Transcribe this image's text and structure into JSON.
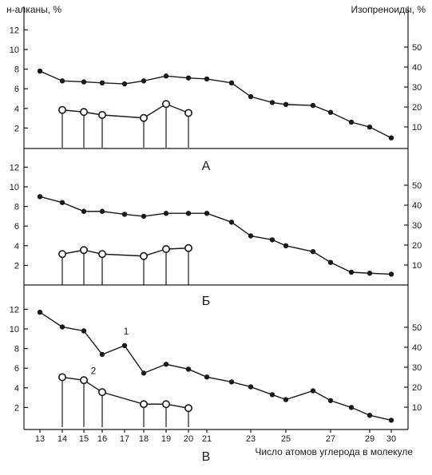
{
  "labels": {
    "left_axis": "н-алканы, %",
    "right_axis": "Изопреноиды, %",
    "x_axis": "Число атомов углерода в молекуле"
  },
  "chart_data": [
    {
      "type": "line",
      "panel": "А",
      "x": [
        13,
        14,
        15,
        16,
        17,
        18,
        19,
        20,
        21,
        22,
        23,
        24,
        25,
        26,
        27,
        28,
        29,
        30
      ],
      "x_tick_labels": [
        "13",
        "14",
        "15",
        "16",
        "17",
        "18",
        "19",
        "20",
        "21",
        "23",
        "25",
        "27",
        "29",
        "30"
      ],
      "ylim": [
        0,
        13
      ],
      "y_ticks": [
        2,
        4,
        6,
        8,
        10,
        12
      ],
      "y2lim": [
        0,
        65
      ],
      "y2_ticks": [
        10,
        20,
        30,
        40,
        50
      ],
      "series": [
        {
          "name": "",
          "marker": "filled-circle",
          "x": [
            13,
            14,
            15,
            16,
            17,
            18,
            19,
            20,
            21,
            22,
            23,
            24,
            25,
            26,
            27,
            28,
            29,
            30
          ],
          "values": [
            7.8,
            6.8,
            6.7,
            6.6,
            6.5,
            6.8,
            7.3,
            7.1,
            7.0,
            6.6,
            5.2,
            4.6,
            4.4,
            4.3,
            3.6,
            2.6,
            2.1,
            1.0
          ]
        },
        {
          "name": "",
          "marker": "open-circle-stem",
          "x": [
            14,
            15,
            16,
            18,
            19,
            20
          ],
          "values": [
            18.5,
            17.5,
            16.0,
            14.5,
            21.5,
            17.0
          ]
        }
      ]
    },
    {
      "type": "line",
      "panel": "Б",
      "x": [
        13,
        14,
        15,
        16,
        17,
        18,
        19,
        20,
        21,
        22,
        23,
        24,
        25,
        26,
        27,
        28,
        29,
        30
      ],
      "x_tick_labels": [
        "13",
        "14",
        "15",
        "16",
        "17",
        "18",
        "19",
        "20",
        "21",
        "23",
        "25",
        "27",
        "29",
        "30"
      ],
      "ylim": [
        0,
        13
      ],
      "y_ticks": [
        2,
        4,
        6,
        8,
        10,
        12
      ],
      "y2lim": [
        0,
        65
      ],
      "y2_ticks": [
        10,
        20,
        30,
        40,
        50
      ],
      "series": [
        {
          "name": "",
          "marker": "filled-circle",
          "x": [
            13,
            14,
            15,
            16,
            17,
            18,
            19,
            20,
            21,
            22,
            23,
            24,
            25,
            26,
            27,
            28,
            29,
            30
          ],
          "values": [
            9.0,
            8.4,
            7.5,
            7.5,
            7.2,
            7.0,
            7.3,
            7.3,
            7.3,
            6.4,
            5.0,
            4.6,
            4.0,
            3.4,
            2.3,
            1.3,
            1.2,
            1.1
          ]
        },
        {
          "name": "",
          "marker": "open-circle-stem",
          "x": [
            14,
            15,
            16,
            18,
            19,
            20
          ],
          "values": [
            15.5,
            17.5,
            15.5,
            14.5,
            18.0,
            18.5
          ]
        }
      ]
    },
    {
      "type": "line",
      "panel": "В",
      "x": [
        13,
        14,
        15,
        16,
        17,
        18,
        19,
        20,
        21,
        22,
        23,
        24,
        25,
        26,
        27,
        28,
        29,
        30
      ],
      "x_tick_labels": [
        "13",
        "14",
        "15",
        "16",
        "17",
        "18",
        "19",
        "20",
        "21",
        "23",
        "25",
        "27",
        "29",
        "30"
      ],
      "xlabel": "Число атомов углерода в молекуле",
      "ylim": [
        0,
        13
      ],
      "y_ticks": [
        2,
        4,
        6,
        8,
        10,
        12
      ],
      "y2lim": [
        0,
        65
      ],
      "y2_ticks": [
        10,
        20,
        30,
        40,
        50
      ],
      "annotations": [
        "1",
        "2"
      ],
      "series": [
        {
          "name": "1",
          "marker": "filled-circle",
          "x": [
            13,
            14,
            15,
            16,
            17,
            18,
            19,
            20,
            21,
            22,
            23,
            24,
            25,
            26,
            27,
            28,
            29,
            30
          ],
          "values": [
            11.7,
            10.2,
            9.8,
            7.4,
            8.3,
            5.5,
            6.4,
            5.9,
            5.1,
            4.6,
            4.1,
            3.3,
            2.8,
            3.7,
            2.7,
            2.0,
            1.2,
            0.7
          ]
        },
        {
          "name": "2",
          "marker": "open-circle-stem",
          "x": [
            14,
            15,
            16,
            18,
            19,
            20
          ],
          "values": [
            25.0,
            23.5,
            17.5,
            11.5,
            11.5,
            9.5
          ]
        }
      ]
    }
  ]
}
